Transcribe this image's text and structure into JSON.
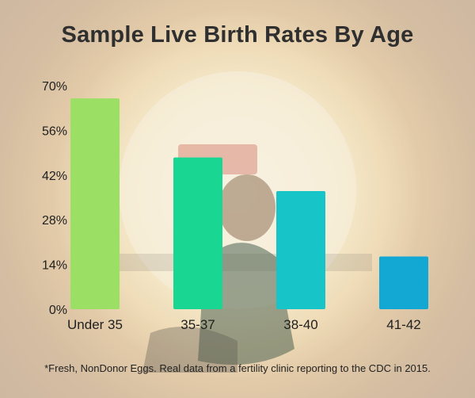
{
  "chart_data": {
    "type": "bar",
    "title": "Sample Live Birth Rates By Age",
    "categories": [
      "Under 35",
      "35-37",
      "38-40",
      "41-42"
    ],
    "values": [
      66,
      47.5,
      37,
      16.5
    ],
    "colors": [
      "#9be064",
      "#19d693",
      "#17c4c8",
      "#13a7d4"
    ],
    "yticks": [
      "0%",
      "14%",
      "28%",
      "42%",
      "56%",
      "70%"
    ],
    "ytick_values": [
      0,
      14,
      28,
      42,
      56,
      70
    ],
    "ylim": [
      0,
      70
    ],
    "xlabel": "",
    "ylabel": "",
    "grid": false,
    "legend": "none"
  },
  "footnote": "*Fresh, NonDonor Eggs. Real data from a fertility clinic reporting to the CDC in 2015."
}
